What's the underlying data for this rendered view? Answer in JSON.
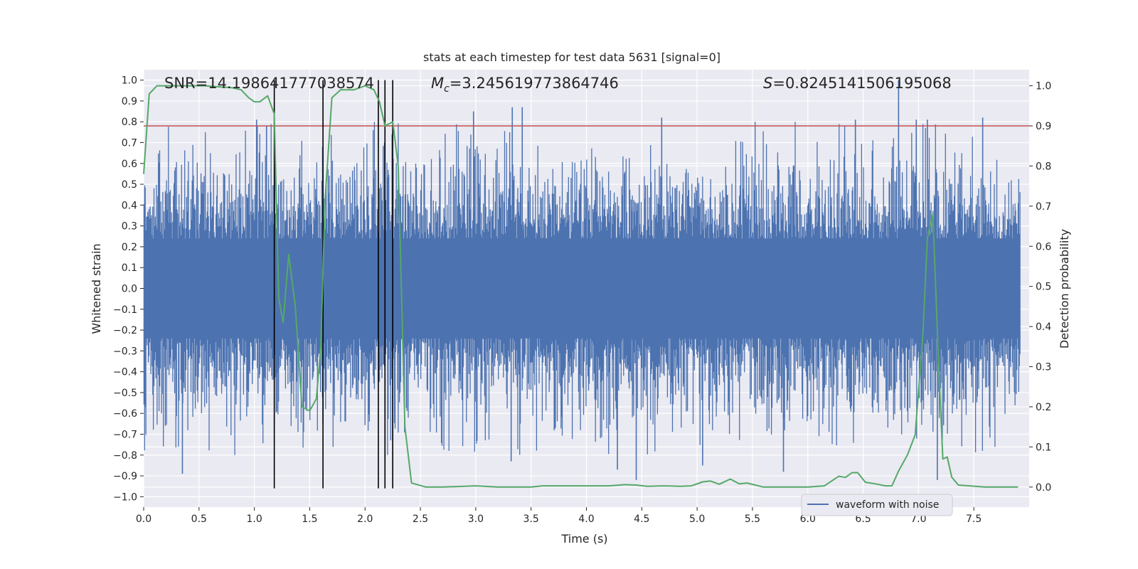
{
  "chart_data": {
    "type": "line",
    "title": "stats at each timestep for test data 5631 [signal=0]",
    "xlabel": "Time (s)",
    "ylabel_left": "Whitened strain",
    "ylabel_right": "Detection probability",
    "xlim": [
      0.0,
      8.0
    ],
    "ylim_left": [
      -1.05,
      1.05
    ],
    "ylim_right": [
      -0.05,
      1.04
    ],
    "x_ticks": [
      "0.0",
      "0.5",
      "1.0",
      "1.5",
      "2.0",
      "2.5",
      "3.0",
      "3.5",
      "4.0",
      "4.5",
      "5.0",
      "5.5",
      "6.0",
      "6.5",
      "7.0",
      "7.5"
    ],
    "y_ticks_left": [
      "1.0",
      "0.9",
      "0.8",
      "0.7",
      "0.6",
      "0.5",
      "0.4",
      "0.3",
      "0.2",
      "0.1",
      "0.0",
      "−0.1",
      "−0.2",
      "−0.3",
      "−0.4",
      "−0.5",
      "−0.6",
      "−0.7",
      "−0.8",
      "−0.9",
      "−1.0"
    ],
    "y_ticks_right": [
      "1.0",
      "0.9",
      "0.8",
      "0.7",
      "0.6",
      "0.5",
      "0.4",
      "0.3",
      "0.2",
      "0.1",
      "0.0"
    ],
    "annotations": {
      "snr": "SNR=14.198641777038574",
      "mc_symbol": "M",
      "mc_subscript": "c",
      "mc_value": "=3.245619773864746",
      "s_symbol": "S",
      "s_value": "=0.8245141506195068"
    },
    "legend": {
      "label": "waveform with noise",
      "location": "lower right"
    },
    "threshold": {
      "value": 0.9,
      "axis": "right",
      "color": "#c44e52"
    },
    "vertical_lines": [
      1.18,
      1.62,
      2.12,
      2.18,
      2.25
    ],
    "noise_series": {
      "name": "waveform with noise",
      "color": "#4c72b0",
      "note": "dense whitened-strain noise, bulk within ±0.4, spikes to ≈ ±0.9",
      "peaks": [
        {
          "x": 0.35,
          "y": -0.89
        },
        {
          "x": 1.02,
          "y": 0.81
        },
        {
          "x": 1.11,
          "y": 0.78
        },
        {
          "x": 1.62,
          "y": -0.65
        },
        {
          "x": 2.18,
          "y": -0.82
        },
        {
          "x": 2.25,
          "y": -0.73
        },
        {
          "x": 2.98,
          "y": 0.85
        },
        {
          "x": 3.33,
          "y": 0.87
        },
        {
          "x": 3.42,
          "y": 0.87
        },
        {
          "x": 3.32,
          "y": -0.83
        },
        {
          "x": 4.28,
          "y": -0.87
        },
        {
          "x": 4.45,
          "y": -0.92
        },
        {
          "x": 4.68,
          "y": 0.82
        },
        {
          "x": 5.05,
          "y": -0.85
        },
        {
          "x": 5.78,
          "y": -0.88
        },
        {
          "x": 6.43,
          "y": 0.81
        },
        {
          "x": 6.82,
          "y": 1.0
        },
        {
          "x": 6.98,
          "y": 0.81
        },
        {
          "x": 7.08,
          "y": 0.81
        },
        {
          "x": 7.17,
          "y": -0.92
        },
        {
          "x": 7.58,
          "y": 0.82
        }
      ]
    },
    "probability_series": {
      "name": "detection probability",
      "color": "#55a868",
      "x": [
        0.0,
        0.05,
        0.12,
        0.3,
        0.55,
        0.8,
        0.88,
        0.95,
        1.0,
        1.05,
        1.12,
        1.18,
        1.22,
        1.26,
        1.31,
        1.37,
        1.43,
        1.5,
        1.56,
        1.6,
        1.64,
        1.7,
        1.78,
        1.9,
        2.0,
        2.08,
        2.13,
        2.18,
        2.25,
        2.3,
        2.36,
        2.42,
        2.55,
        2.7,
        3.0,
        3.2,
        3.5,
        3.6,
        3.8,
        4.0,
        4.2,
        4.35,
        4.45,
        4.55,
        4.7,
        4.85,
        4.95,
        5.05,
        5.12,
        5.2,
        5.3,
        5.38,
        5.45,
        5.6,
        5.8,
        6.0,
        6.15,
        6.28,
        6.34,
        6.4,
        6.45,
        6.52,
        6.63,
        6.7,
        6.76,
        6.82,
        6.9,
        6.97,
        7.04,
        7.08,
        7.13,
        7.18,
        7.22,
        7.26,
        7.3,
        7.36,
        7.6,
        7.9
      ],
      "y": [
        0.78,
        0.98,
        1.0,
        1.0,
        1.0,
        0.995,
        0.99,
        0.97,
        0.96,
        0.96,
        0.975,
        0.93,
        0.47,
        0.41,
        0.58,
        0.45,
        0.2,
        0.19,
        0.22,
        0.35,
        0.72,
        0.97,
        0.99,
        0.99,
        1.0,
        0.99,
        0.96,
        0.9,
        0.91,
        0.8,
        0.15,
        0.01,
        0.0,
        0.0,
        0.003,
        0.0,
        0.0,
        0.003,
        0.003,
        0.003,
        0.003,
        0.006,
        0.005,
        0.002,
        0.003,
        0.002,
        0.003,
        0.013,
        0.015,
        0.007,
        0.02,
        0.008,
        0.01,
        0.0,
        0.0,
        0.0,
        0.003,
        0.027,
        0.024,
        0.036,
        0.036,
        0.012,
        0.007,
        0.003,
        0.003,
        0.04,
        0.08,
        0.13,
        0.38,
        0.62,
        0.68,
        0.32,
        0.07,
        0.075,
        0.025,
        0.005,
        0.0,
        0.0
      ]
    }
  }
}
